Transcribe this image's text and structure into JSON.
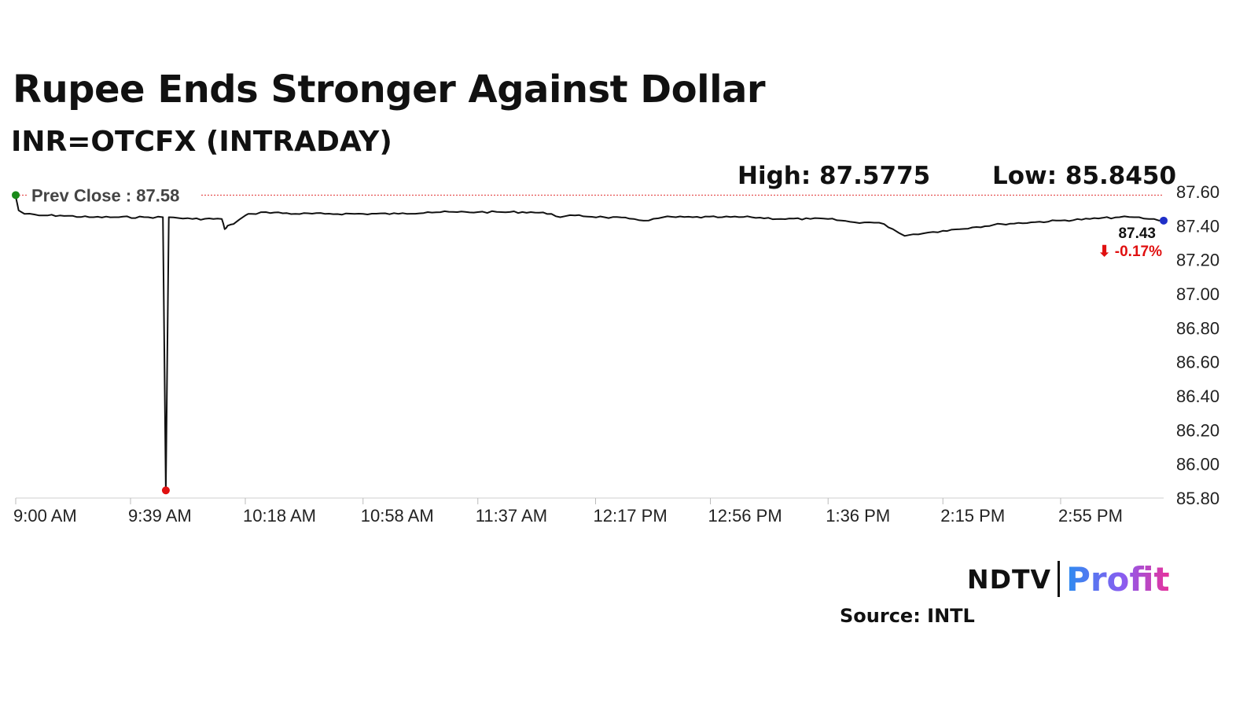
{
  "title": "Rupee Ends Stronger Against Dollar",
  "subtitle": "INR=OTCFX (INTRADAY)",
  "high_label": "High: 87.5775",
  "low_label": "Low: 85.8450",
  "prev_close_label": "Prev Close : 87.58",
  "last_value_label": "87.43",
  "change_label": "⬇ -0.17%",
  "source": "Source: INTL",
  "logo": {
    "ndtv": "NDTV",
    "profit": "Profit"
  },
  "colors": {
    "line": "#111111",
    "prev_close": "#e03030",
    "up_dot": "#1a8a1a",
    "low_dot": "#e01010",
    "last_dot": "#1f2fc8",
    "change": "#e01010"
  },
  "chart_data": {
    "type": "line",
    "title": "Rupee Ends Stronger Against Dollar",
    "subtitle": "INR=OTCFX (INTRADAY)",
    "y_ticks": [
      "87.60",
      "87.40",
      "87.20",
      "87.00",
      "86.80",
      "86.60",
      "86.40",
      "86.20",
      "86.00",
      "85.80"
    ],
    "ylim": [
      85.8,
      87.6
    ],
    "x_ticks": [
      "9:00 AM",
      "9:39 AM",
      "10:18 AM",
      "10:58 AM",
      "11:37 AM",
      "12:17 PM",
      "12:56 PM",
      "1:36 PM",
      "2:15 PM",
      "2:55 PM"
    ],
    "x_tick_minutes": [
      0,
      39,
      78,
      118,
      157,
      197,
      236,
      276,
      315,
      355
    ],
    "xlim_minutes": [
      0,
      390
    ],
    "prev_close": 87.58,
    "high": 87.5775,
    "low": 85.845,
    "last": 87.43,
    "change_percent": -0.17,
    "series": [
      {
        "x_minutes": [
          0,
          1,
          3,
          8,
          15,
          25,
          35,
          45,
          50,
          51,
          52,
          60,
          70,
          71,
          72,
          74,
          78,
          80,
          85,
          95,
          105,
          118,
          130,
          140,
          150,
          157,
          165,
          175,
          182,
          185,
          190,
          200,
          210,
          215,
          220,
          230,
          240,
          250,
          260,
          270,
          276,
          285,
          290,
          295,
          298,
          302,
          305,
          310,
          315,
          325,
          335,
          345,
          355,
          365,
          375,
          380,
          385,
          390
        ],
        "values": [
          87.57,
          87.49,
          87.47,
          87.46,
          87.46,
          87.45,
          87.45,
          87.45,
          87.45,
          85.845,
          87.45,
          87.44,
          87.44,
          87.38,
          87.4,
          87.41,
          87.46,
          87.47,
          87.48,
          87.47,
          87.47,
          87.47,
          87.47,
          87.48,
          87.48,
          87.48,
          87.48,
          87.48,
          87.47,
          87.45,
          87.46,
          87.45,
          87.44,
          87.43,
          87.45,
          87.45,
          87.45,
          87.45,
          87.44,
          87.44,
          87.44,
          87.42,
          87.42,
          87.41,
          87.38,
          87.34,
          87.35,
          87.36,
          87.37,
          87.39,
          87.41,
          87.42,
          87.43,
          87.44,
          87.45,
          87.45,
          87.44,
          87.43
        ]
      }
    ]
  }
}
